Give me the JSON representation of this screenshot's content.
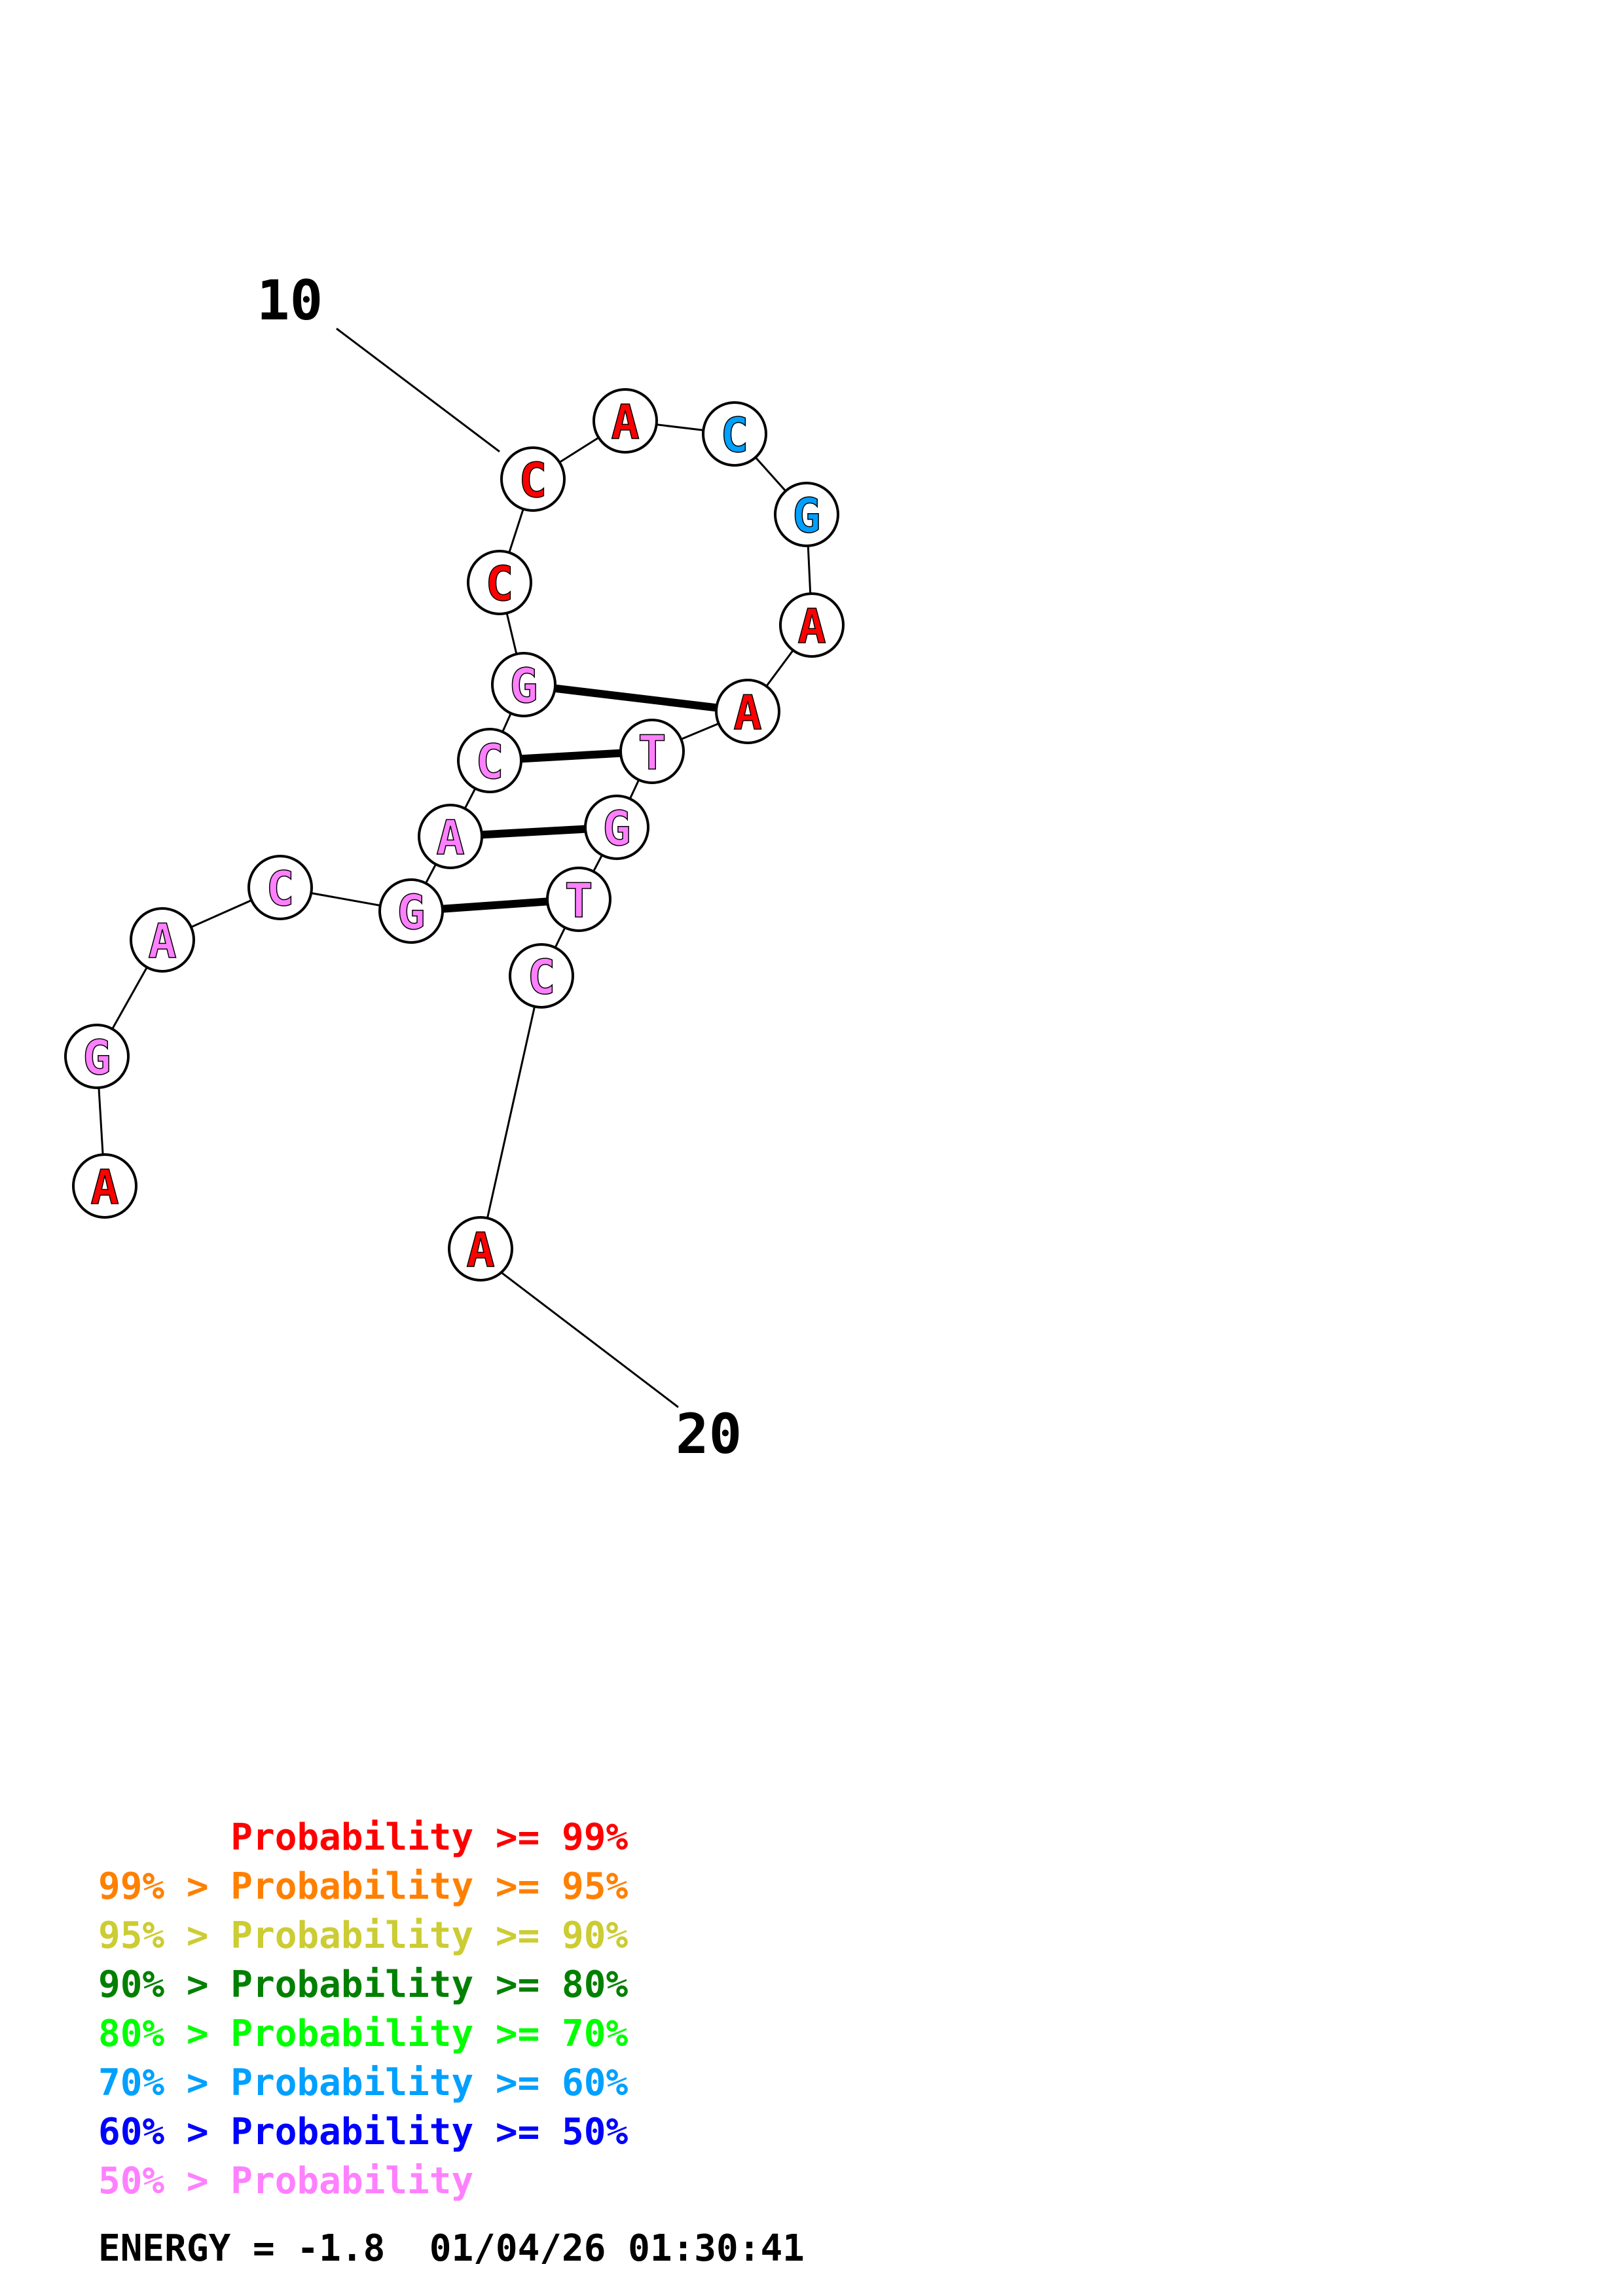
{
  "structure": {
    "nucleotides": [
      {
        "base": "A",
        "color": "#ff0000"
      },
      {
        "base": "G",
        "color": "#ff80ff"
      },
      {
        "base": "A",
        "color": "#ff80ff"
      },
      {
        "base": "C",
        "color": "#ff80ff"
      },
      {
        "base": "G",
        "color": "#ff80ff"
      },
      {
        "base": "A",
        "color": "#ff80ff"
      },
      {
        "base": "C",
        "color": "#ff80ff"
      },
      {
        "base": "G",
        "color": "#ff80ff"
      },
      {
        "base": "C",
        "color": "#ff0000"
      },
      {
        "base": "C",
        "color": "#ff0000"
      },
      {
        "base": "A",
        "color": "#ff0000"
      },
      {
        "base": "C",
        "color": "#00a0ff"
      },
      {
        "base": "G",
        "color": "#00a0ff"
      },
      {
        "base": "A",
        "color": "#ff0000"
      },
      {
        "base": "A",
        "color": "#ff0000"
      },
      {
        "base": "T",
        "color": "#ff80ff"
      },
      {
        "base": "G",
        "color": "#ff80ff"
      },
      {
        "base": "T",
        "color": "#ff80ff"
      },
      {
        "base": "C",
        "color": "#ff80ff"
      },
      {
        "base": "A",
        "color": "#ff0000"
      }
    ],
    "pairs": [
      [
        5,
        18
      ],
      [
        6,
        17
      ],
      [
        7,
        16
      ],
      [
        8,
        15
      ]
    ],
    "number_labels": [
      {
        "index": 10,
        "text": "10"
      },
      {
        "index": 20,
        "text": "20"
      }
    ]
  },
  "legend": [
    {
      "prefix": "",
      "text": "Probability >= 99%",
      "color": "#ff0000"
    },
    {
      "prefix": "99% > ",
      "text": "Probability >= 95%",
      "color": "#ff8000"
    },
    {
      "prefix": "95% > ",
      "text": "Probability >= 90%",
      "color": "#cccc33"
    },
    {
      "prefix": "90% > ",
      "text": "Probability >= 80%",
      "color": "#008000"
    },
    {
      "prefix": "80% > ",
      "text": "Probability >= 70%",
      "color": "#00ff00"
    },
    {
      "prefix": "70% > ",
      "text": "Probability >= 60%",
      "color": "#00a0ff"
    },
    {
      "prefix": "60% > ",
      "text": "Probability >= 50%",
      "color": "#0000ff"
    },
    {
      "prefix": "50% > ",
      "text": "Probability",
      "color": "#ff80ff"
    }
  ],
  "footer": {
    "energy": "ENERGY = -1.8  01/04/26 01:30:41"
  }
}
